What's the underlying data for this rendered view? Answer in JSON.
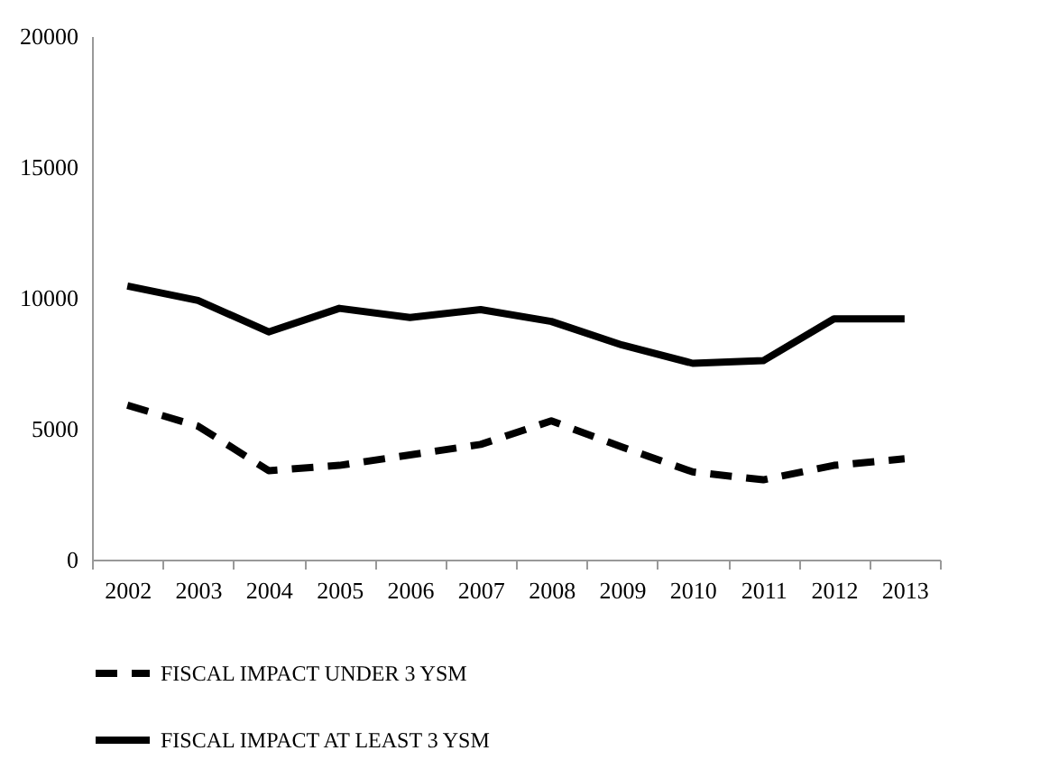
{
  "chart_data": {
    "type": "line",
    "categories": [
      "2002",
      "2003",
      "2004",
      "2005",
      "2006",
      "2007",
      "2008",
      "2009",
      "2010",
      "2011",
      "2012",
      "2013"
    ],
    "series": [
      {
        "name": "FISCAL IMPACT UNDER 3 YSM",
        "color": "#000000",
        "line_style": "dashed",
        "values": [
          5900,
          5100,
          3400,
          3600,
          4000,
          4400,
          5300,
          4300,
          3350,
          3050,
          3600,
          3850
        ]
      },
      {
        "name": "FISCAL IMPACT AT LEAST 3 YSM",
        "color": "#000000",
        "line_style": "solid",
        "values": [
          10450,
          9900,
          8700,
          9600,
          9250,
          9550,
          9100,
          8200,
          7500,
          7600,
          9200,
          9200
        ]
      }
    ],
    "ylim": [
      0,
      20000
    ],
    "yticks": [
      0,
      5000,
      10000,
      15000,
      20000
    ],
    "grid": false,
    "legend": "bottom",
    "marker": "none"
  }
}
